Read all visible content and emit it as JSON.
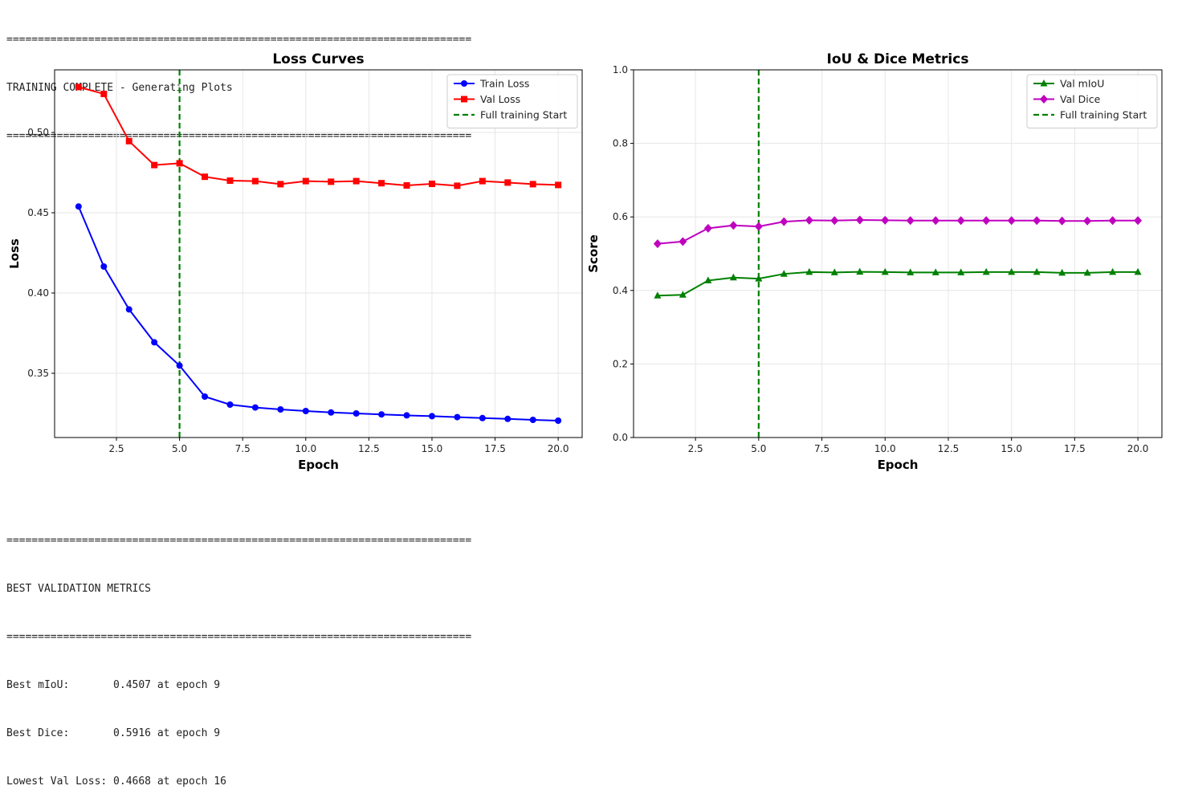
{
  "console": {
    "rule": "==========================================================================",
    "header_title": "TRAINING COMPLETE - Generating Plots",
    "best_title": "BEST VALIDATION METRICS",
    "best_lines": [
      "Best mIoU:       0.4507 at epoch 9",
      "Best Dice:       0.5916 at epoch 9",
      "Lowest Val Loss: 0.4668 at epoch 16"
    ]
  },
  "chart_data": [
    {
      "type": "line",
      "title": "Loss Curves",
      "xlabel": "Epoch",
      "ylabel": "Loss",
      "xlim": [
        0.05,
        20.95
      ],
      "ylim": [
        0.31,
        0.539
      ],
      "xticks": [
        2.5,
        5.0,
        7.5,
        10.0,
        12.5,
        15.0,
        17.5,
        20.0
      ],
      "xtick_labels": [
        "2.5",
        "5.0",
        "7.5",
        "10.0",
        "12.5",
        "15.0",
        "17.5",
        "20.0"
      ],
      "yticks": [
        0.35,
        0.4,
        0.45,
        0.5
      ],
      "ytick_labels": [
        "0.35",
        "0.40",
        "0.45",
        "0.50"
      ],
      "grid": true,
      "legend_position": "top-right",
      "x": [
        1,
        2,
        3,
        4,
        5,
        6,
        7,
        8,
        9,
        10,
        11,
        12,
        13,
        14,
        15,
        16,
        17,
        18,
        19,
        20
      ],
      "series": [
        {
          "name": "Train Loss",
          "color": "#0000ff",
          "marker": "circle",
          "values": [
            0.4539,
            0.4165,
            0.3898,
            0.3693,
            0.3548,
            0.3355,
            0.3305,
            0.3287,
            0.3275,
            0.3265,
            0.3256,
            0.325,
            0.3244,
            0.3238,
            0.3233,
            0.3227,
            0.3221,
            0.3216,
            0.321,
            0.3205
          ]
        },
        {
          "name": "Val Loss",
          "color": "#ff0000",
          "marker": "square",
          "values": [
            0.5283,
            0.524,
            0.4946,
            0.4797,
            0.4808,
            0.4724,
            0.47,
            0.4697,
            0.4678,
            0.4697,
            0.4693,
            0.4697,
            0.4684,
            0.467,
            0.468,
            0.4668,
            0.4697,
            0.4688,
            0.4678,
            0.4673
          ]
        }
      ],
      "vline": {
        "name": "Full training Start",
        "x": 5,
        "color": "#008000"
      }
    },
    {
      "type": "line",
      "title": "IoU & Dice Metrics",
      "xlabel": "Epoch",
      "ylabel": "Score",
      "xlim": [
        0.05,
        20.95
      ],
      "ylim": [
        0.0,
        1.0
      ],
      "xticks": [
        2.5,
        5.0,
        7.5,
        10.0,
        12.5,
        15.0,
        17.5,
        20.0
      ],
      "xtick_labels": [
        "2.5",
        "5.0",
        "7.5",
        "10.0",
        "12.5",
        "15.0",
        "17.5",
        "20.0"
      ],
      "yticks": [
        0.0,
        0.2,
        0.4,
        0.6,
        0.8,
        1.0
      ],
      "ytick_labels": [
        "0.0",
        "0.2",
        "0.4",
        "0.6",
        "0.8",
        "1.0"
      ],
      "grid": true,
      "legend_position": "top-right",
      "x": [
        1,
        2,
        3,
        4,
        5,
        6,
        7,
        8,
        9,
        10,
        11,
        12,
        13,
        14,
        15,
        16,
        17,
        18,
        19,
        20
      ],
      "series": [
        {
          "name": "Val mIoU",
          "color": "#008000",
          "marker": "triangle",
          "values": [
            0.386,
            0.388,
            0.427,
            0.435,
            0.432,
            0.445,
            0.45,
            0.449,
            0.4507,
            0.45,
            0.449,
            0.449,
            0.449,
            0.45,
            0.45,
            0.45,
            0.448,
            0.448,
            0.45,
            0.45
          ]
        },
        {
          "name": "Val Dice",
          "color": "#bf00bf",
          "marker": "diamond",
          "values": [
            0.527,
            0.533,
            0.569,
            0.577,
            0.574,
            0.587,
            0.591,
            0.59,
            0.5916,
            0.591,
            0.59,
            0.59,
            0.59,
            0.59,
            0.59,
            0.59,
            0.589,
            0.589,
            0.59,
            0.59
          ]
        }
      ],
      "vline": {
        "name": "Full training Start",
        "x": 5,
        "color": "#008000"
      }
    }
  ]
}
